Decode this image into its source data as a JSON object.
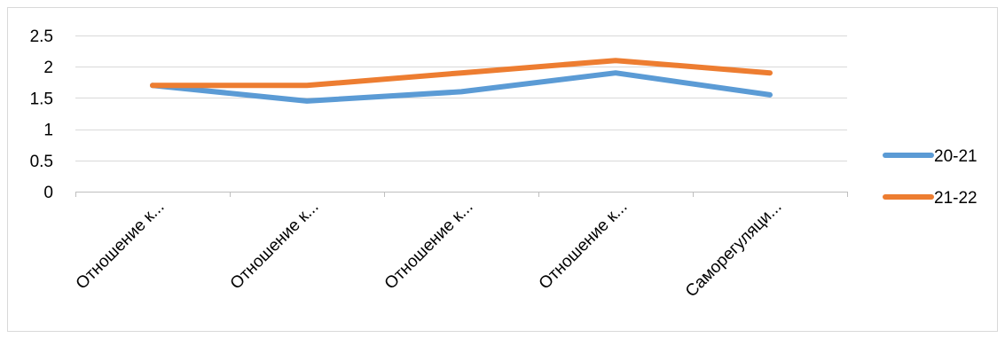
{
  "chart_data": {
    "type": "line",
    "categories": [
      "Отношение к...",
      "Отношение к...",
      "Отношение к...",
      "Отношение к...",
      "Саморегуляци..."
    ],
    "series": [
      {
        "name": "20-21",
        "values": [
          1.7,
          1.45,
          1.6,
          1.9,
          1.55
        ],
        "color": "#5B9BD5"
      },
      {
        "name": "21-22",
        "values": [
          1.7,
          1.7,
          1.9,
          2.1,
          1.9
        ],
        "color": "#ED7D31"
      }
    ],
    "yticks": [
      "0",
      "0.5",
      "1",
      "1.5",
      "2",
      "2.5"
    ],
    "ylim": [
      0,
      2.5
    ],
    "grid": true,
    "legend_position": "right",
    "title": "",
    "xlabel": "",
    "ylabel": ""
  }
}
